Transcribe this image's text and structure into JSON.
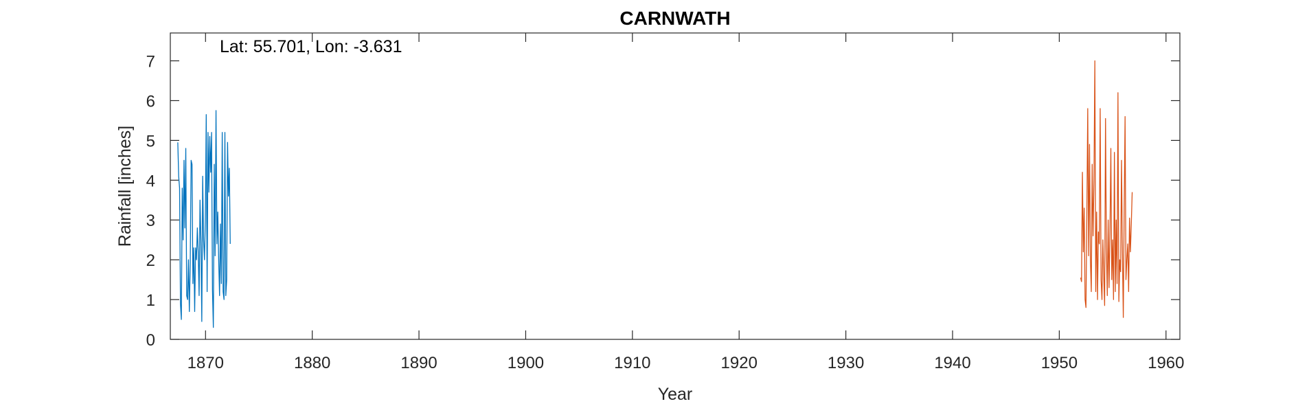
{
  "chart_data": {
    "type": "line",
    "title": "CARNWATH",
    "xlabel": "Year",
    "ylabel": "Rainfall [inches]",
    "annotation": "Lat: 55.701, Lon: -3.631",
    "xlim": [
      1866.7,
      1961.3
    ],
    "ylim": [
      0,
      7.7
    ],
    "xticks": [
      1870,
      1880,
      1890,
      1900,
      1910,
      1920,
      1930,
      1940,
      1950,
      1960
    ],
    "yticks": [
      0,
      1,
      2,
      3,
      4,
      5,
      6,
      7
    ],
    "grid": false,
    "series": [
      {
        "color": "#0072BD",
        "start_year": 1867.4,
        "step": 0.0833,
        "values": [
          4.95,
          4.1,
          3.8,
          0.9,
          0.5,
          3.8,
          2.5,
          4.5,
          2.8,
          4.8,
          1.1,
          1.0,
          2.0,
          0.7,
          1.9,
          4.5,
          4.4,
          1.4,
          2.3,
          0.7,
          2.3,
          2.0,
          2.8,
          2.2,
          1.1,
          3.5,
          2.5,
          0.45,
          4.1,
          2.5,
          2.0,
          3.0,
          5.65,
          1.2,
          5.2,
          3.7,
          5.1,
          4.2,
          5.2,
          1.25,
          0.3,
          4.4,
          2.1,
          5.75,
          2.4,
          3.2,
          2.0,
          1.1,
          2.9,
          1.4,
          5.2,
          1.2,
          1.0,
          5.2,
          1.1,
          1.5,
          4.95,
          3.6,
          4.3,
          2.4
        ]
      },
      {
        "color": "#D95319",
        "start_year": 1952.0,
        "step": 0.0833,
        "values": [
          1.55,
          1.45,
          4.2,
          2.2,
          3.3,
          1.0,
          0.8,
          3.2,
          5.8,
          2.1,
          4.9,
          2.0,
          1.2,
          4.4,
          2.6,
          4.0,
          7.0,
          1.2,
          3.2,
          1.0,
          2.7,
          2.4,
          5.8,
          1.5,
          1.0,
          2.5,
          1.6,
          0.85,
          5.55,
          2.3,
          1.1,
          3.0,
          1.3,
          2.7,
          4.8,
          1.5,
          2.5,
          1.0,
          4.7,
          1.2,
          3.0,
          1.4,
          6.2,
          0.95,
          2.0,
          1.7,
          4.5,
          2.2,
          0.55,
          3.3,
          5.6,
          1.5,
          2.0,
          2.4,
          1.2,
          3.05,
          2.2,
          2.9,
          3.7
        ]
      }
    ]
  }
}
